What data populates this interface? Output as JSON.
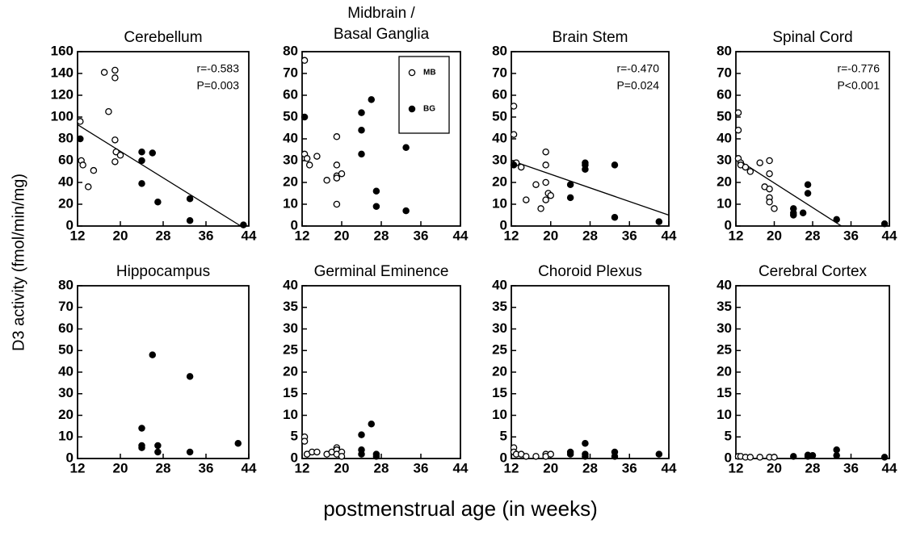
{
  "figure": {
    "ylabel": "D3  activity  (fmol/min/mg)",
    "xlabel": "postmenstrual age (in weeks)"
  },
  "chart_data": [
    {
      "type": "scatter",
      "title": "Cerebellum",
      "xlim": [
        12,
        44
      ],
      "xticks": [
        12,
        20,
        28,
        36,
        44
      ],
      "ylim": [
        0,
        160
      ],
      "yticks": [
        0,
        20,
        40,
        60,
        80,
        100,
        120,
        140,
        160
      ],
      "annotations": [
        "r=-0.583",
        "P=0.003"
      ],
      "fit": {
        "x": [
          12,
          42.5
        ],
        "values": [
          93,
          0
        ]
      },
      "series": [
        {
          "marker": "open",
          "color": "#000000",
          "x": [
            12.5,
            12.7,
            13,
            14,
            15,
            17,
            17.8,
            19,
            19,
            19,
            19,
            19.2,
            20
          ],
          "values": [
            96,
            60,
            56,
            36,
            51,
            141,
            105,
            143,
            136,
            79,
            59,
            68,
            65
          ]
        },
        {
          "marker": "filled",
          "color": "#000000",
          "x": [
            12.5,
            24,
            24,
            24,
            26,
            27,
            33,
            33,
            43
          ],
          "values": [
            80,
            68,
            60,
            39,
            67,
            22,
            25,
            5,
            1
          ]
        }
      ]
    },
    {
      "type": "scatter",
      "title": [
        "Midbrain /",
        "Basal Ganglia"
      ],
      "xlim": [
        12,
        44
      ],
      "xticks": [
        12,
        20,
        28,
        36,
        44
      ],
      "ylim": [
        0,
        80
      ],
      "yticks": [
        0,
        10,
        20,
        30,
        40,
        50,
        60,
        70,
        80
      ],
      "legend": "upper right",
      "series": [
        {
          "name": "MB",
          "marker": "open",
          "color": "#000000",
          "x": [
            12.5,
            12.5,
            13,
            13.5,
            15,
            17,
            19,
            19,
            19,
            19,
            19,
            20
          ],
          "values": [
            76,
            33,
            31,
            28,
            32,
            21,
            41,
            28,
            23,
            22,
            10,
            24
          ]
        },
        {
          "name": "BG",
          "marker": "filled",
          "color": "#000000",
          "x": [
            12.5,
            24,
            24,
            24,
            26,
            27,
            27,
            33,
            33
          ],
          "values": [
            50,
            52,
            44,
            33,
            58,
            16,
            9,
            36,
            7
          ]
        }
      ]
    },
    {
      "type": "scatter",
      "title": "Brain Stem",
      "xlim": [
        12,
        44
      ],
      "xticks": [
        12,
        20,
        28,
        36,
        44
      ],
      "ylim": [
        0,
        80
      ],
      "yticks": [
        0,
        10,
        20,
        30,
        40,
        50,
        60,
        70,
        80
      ],
      "annotations": [
        "r=-0.470",
        "P=0.024"
      ],
      "fit": {
        "x": [
          12,
          44
        ],
        "values": [
          30,
          5
        ]
      },
      "series": [
        {
          "marker": "open",
          "color": "#000000",
          "x": [
            12.5,
            12.5,
            13,
            14,
            15,
            17,
            18,
            19,
            19,
            19,
            19,
            19.5,
            20
          ],
          "values": [
            55,
            42,
            29,
            27,
            12,
            19,
            8,
            34,
            28,
            20,
            12,
            15,
            14
          ]
        },
        {
          "marker": "filled",
          "color": "#000000",
          "x": [
            12.5,
            24,
            24,
            27,
            27,
            27,
            33,
            33,
            42
          ],
          "values": [
            28,
            19,
            13,
            28,
            26,
            29,
            28,
            4,
            2
          ]
        }
      ]
    },
    {
      "type": "scatter",
      "title": "Spinal Cord",
      "xlim": [
        12,
        44
      ],
      "xticks": [
        12,
        20,
        28,
        36,
        44
      ],
      "ylim": [
        0,
        80
      ],
      "yticks": [
        0,
        10,
        20,
        30,
        40,
        50,
        60,
        70,
        80
      ],
      "annotations": [
        "r=-0.776",
        "P<0.001"
      ],
      "fit": {
        "x": [
          12,
          34
        ],
        "values": [
          31,
          0
        ]
      },
      "series": [
        {
          "marker": "open",
          "color": "#000000",
          "x": [
            12.5,
            12.5,
            12.5,
            13,
            13,
            14,
            15,
            17,
            18,
            19,
            19,
            19,
            19,
            19,
            20
          ],
          "values": [
            52,
            44,
            31,
            29,
            28,
            27,
            25,
            29,
            18,
            30,
            24,
            17,
            13,
            11,
            8
          ]
        },
        {
          "marker": "filled",
          "color": "#000000",
          "x": [
            24,
            24,
            24,
            26,
            27,
            27,
            33,
            43
          ],
          "values": [
            8,
            6,
            5,
            6,
            19,
            15,
            3,
            1
          ]
        }
      ]
    },
    {
      "type": "scatter",
      "title": "Hippocampus",
      "xlim": [
        12,
        44
      ],
      "xticks": [
        12,
        20,
        28,
        36,
        44
      ],
      "ylim": [
        0,
        80
      ],
      "yticks": [
        0,
        10,
        20,
        30,
        40,
        50,
        60,
        70,
        80
      ],
      "series": [
        {
          "marker": "filled",
          "color": "#000000",
          "x": [
            24,
            24,
            24,
            26,
            27,
            27,
            33,
            33,
            42
          ],
          "values": [
            14,
            6,
            5,
            48,
            6,
            3,
            38,
            3,
            7
          ]
        }
      ]
    },
    {
      "type": "scatter",
      "title": "Germinal Eminence",
      "xlim": [
        12,
        44
      ],
      "xticks": [
        12,
        20,
        28,
        36,
        44
      ],
      "ylim": [
        0,
        40
      ],
      "yticks": [
        0,
        5,
        10,
        15,
        20,
        25,
        30,
        35,
        40
      ],
      "series": [
        {
          "marker": "open",
          "color": "#000000",
          "x": [
            12.5,
            12.5,
            13,
            14,
            15,
            17,
            18,
            19,
            19,
            19,
            20,
            20
          ],
          "values": [
            5,
            4,
            1,
            1.5,
            1.5,
            1,
            1.5,
            2.5,
            2,
            1,
            1.5,
            0.5
          ]
        },
        {
          "marker": "filled",
          "color": "#000000",
          "x": [
            24,
            24,
            24,
            26,
            27,
            27
          ],
          "values": [
            5.5,
            2,
            1,
            8,
            1,
            0.5
          ]
        }
      ]
    },
    {
      "type": "scatter",
      "title": "Choroid Plexus",
      "xlim": [
        12,
        44
      ],
      "xticks": [
        12,
        20,
        28,
        36,
        44
      ],
      "ylim": [
        0,
        40
      ],
      "yticks": [
        0,
        5,
        10,
        15,
        20,
        25,
        30,
        35,
        40
      ],
      "series": [
        {
          "marker": "open",
          "color": "#000000",
          "x": [
            12.5,
            12.5,
            13,
            14,
            15,
            17,
            19,
            19,
            20
          ],
          "values": [
            2.5,
            1.5,
            1,
            1,
            0.5,
            0.5,
            1,
            0.5,
            1
          ]
        },
        {
          "marker": "filled",
          "color": "#000000",
          "x": [
            24,
            24,
            27,
            27,
            27,
            33,
            33,
            42
          ],
          "values": [
            1.5,
            1,
            3.5,
            1,
            0.5,
            1.5,
            0.5,
            1
          ]
        }
      ]
    },
    {
      "type": "scatter",
      "title": "Cerebral Cortex",
      "xlim": [
        12,
        44
      ],
      "xticks": [
        12,
        20,
        28,
        36,
        44
      ],
      "ylim": [
        0,
        40
      ],
      "yticks": [
        0,
        5,
        10,
        15,
        20,
        25,
        30,
        35,
        40
      ],
      "series": [
        {
          "marker": "open",
          "color": "#000000",
          "x": [
            12.5,
            13,
            14,
            15,
            17,
            19,
            20
          ],
          "values": [
            0.5,
            0.5,
            0.3,
            0.3,
            0.3,
            0.3,
            0.3
          ]
        },
        {
          "marker": "filled",
          "color": "#000000",
          "x": [
            24,
            27,
            27,
            28,
            33,
            33,
            43
          ],
          "values": [
            0.5,
            0.8,
            0.5,
            0.7,
            2,
            0.7,
            0.3
          ]
        }
      ]
    }
  ]
}
